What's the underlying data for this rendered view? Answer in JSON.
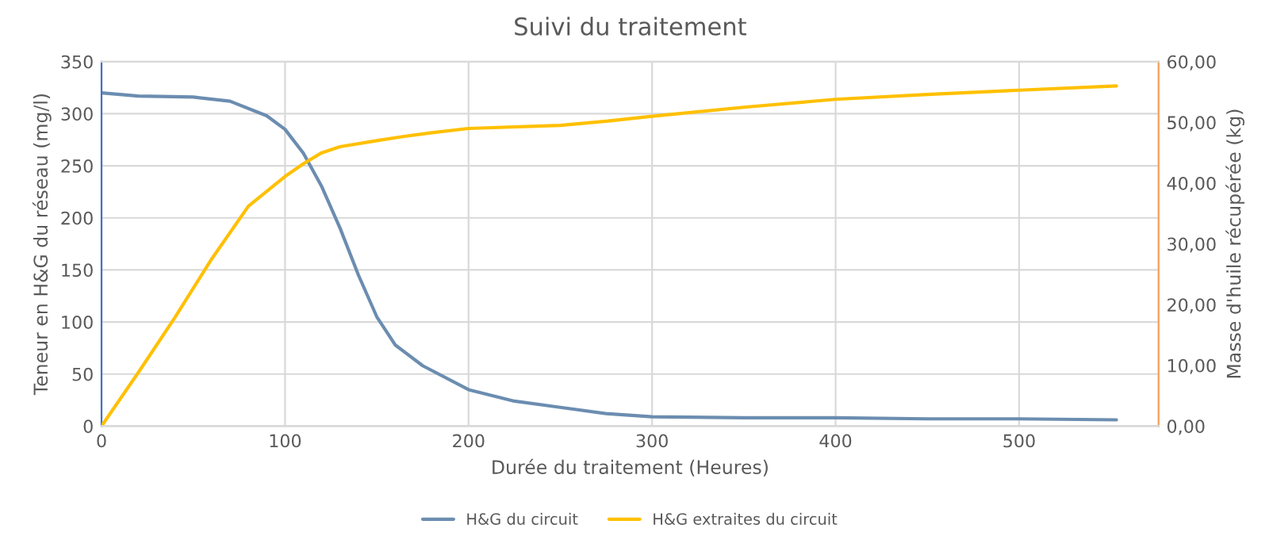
{
  "chart_data": {
    "type": "line",
    "title": "Suivi du traitement",
    "xlabel": "Durée du traitement (Heures)",
    "ylabel": "Teneur en H&G du réseau (mg/l)",
    "y2label": "Masse d'huile récupérée (kg)",
    "xlim": [
      0,
      576
    ],
    "xticks": [
      0,
      100,
      200,
      300,
      400,
      500
    ],
    "ylim": [
      0,
      350
    ],
    "yticks": [
      0,
      50,
      100,
      150,
      200,
      250,
      300,
      350
    ],
    "y2lim": [
      0,
      60
    ],
    "y2ticks": [
      {
        "value": 0,
        "label": "0,00"
      },
      {
        "value": 10,
        "label": "10,00"
      },
      {
        "value": 20,
        "label": "20,00"
      },
      {
        "value": 30,
        "label": "30,00"
      },
      {
        "value": 40,
        "label": "40,00"
      },
      {
        "value": 50,
        "label": "50,00"
      },
      {
        "value": 60,
        "label": "60,00"
      }
    ],
    "grid": true,
    "legend": "bottom",
    "marker": "none",
    "line_style": "solid",
    "series": [
      {
        "name": "H&G du circuit",
        "color": "#6b8db0",
        "x": [
          0,
          20,
          50,
          70,
          90,
          100,
          110,
          120,
          130,
          140,
          150,
          160,
          175,
          200,
          225,
          250,
          275,
          300,
          350,
          400,
          450,
          500,
          553
        ],
        "values": [
          320,
          317,
          316,
          312,
          298,
          285,
          262,
          230,
          190,
          145,
          105,
          78,
          58,
          35,
          24,
          18,
          12,
          9,
          8,
          8,
          7,
          7,
          6
        ]
      },
      {
        "name": "H&G extraites du circuit",
        "color": "#ffc000",
        "axis": "y2",
        "x": [
          0,
          20,
          40,
          60,
          80,
          100,
          110,
          120,
          130,
          150,
          165,
          180,
          200,
          250,
          275,
          300,
          350,
          400,
          450,
          500,
          553
        ],
        "values": [
          0,
          8.8,
          17.9,
          27.5,
          36.2,
          41.1,
          43.2,
          45,
          46,
          47,
          47.7,
          48.3,
          49,
          49.5,
          50.2,
          51,
          52.5,
          53.8,
          54.6,
          55.3,
          56
        ]
      }
    ]
  }
}
